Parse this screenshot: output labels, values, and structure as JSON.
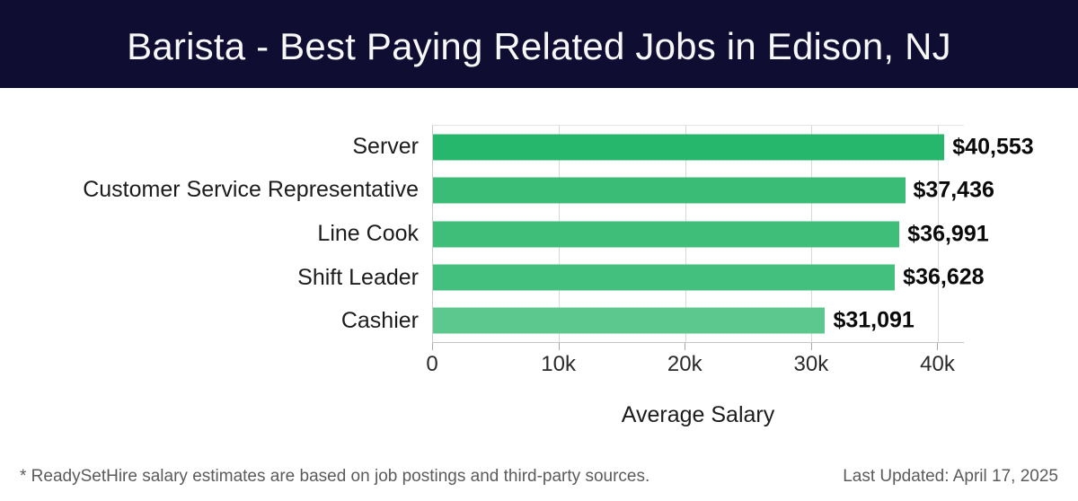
{
  "header": {
    "title": "Barista - Best Paying Related Jobs in Edison, NJ",
    "background_color": "#100d33",
    "text_color": "#f7f7f7"
  },
  "chart_data": {
    "type": "bar",
    "orientation": "horizontal",
    "title": "Barista - Best Paying Related Jobs in Edison, NJ",
    "categories": [
      "Server",
      "Customer Service Representative",
      "Line Cook",
      "Shift Leader",
      "Cashier"
    ],
    "values": [
      40553,
      37436,
      36991,
      36628,
      31091
    ],
    "value_labels": [
      "$40,553",
      "$37,436",
      "$36,991",
      "$36,628",
      "$31,091"
    ],
    "bar_colors": [
      "#26b66c",
      "#3abc76",
      "#3fbe7a",
      "#43c07e",
      "#5cc88e"
    ],
    "xlabel": "Average Salary",
    "ylabel": "",
    "xlim": [
      0,
      42100
    ],
    "xticks": [
      {
        "value": 0,
        "label": "0"
      },
      {
        "value": 10000,
        "label": "10k"
      },
      {
        "value": 20000,
        "label": "20k"
      },
      {
        "value": 30000,
        "label": "30k"
      },
      {
        "value": 40000,
        "label": "40k"
      }
    ],
    "grid": "vertical",
    "legend": "none"
  },
  "footer": {
    "note": "* ReadySetHire salary estimates are based on job postings and third-party sources.",
    "last_updated": "Last Updated: April 17, 2025"
  }
}
